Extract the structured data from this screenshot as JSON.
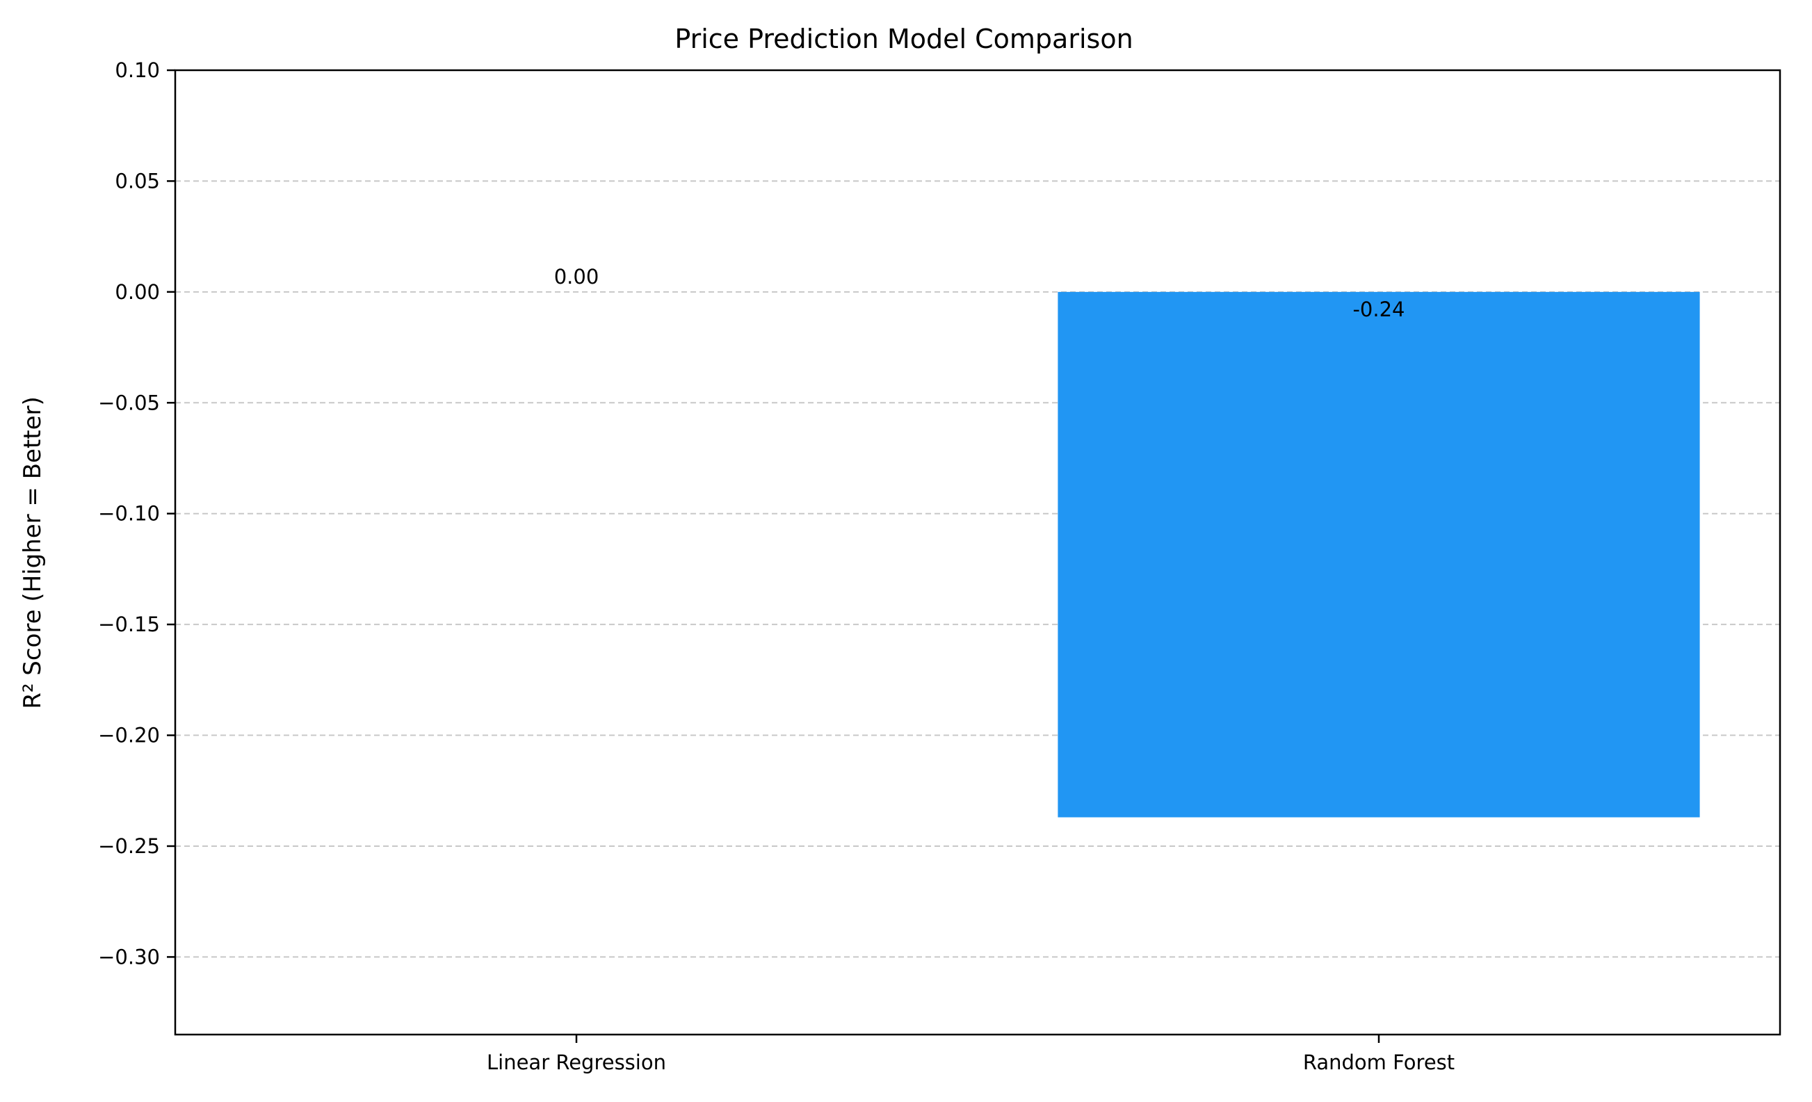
{
  "chart_data": {
    "type": "bar",
    "title": "Price Prediction Model Comparison",
    "xlabel": "",
    "ylabel": "R² Score (Higher = Better)",
    "categories": [
      "Linear Regression",
      "Random Forest"
    ],
    "values": [
      0.0,
      -0.237
    ],
    "data_labels": [
      "0.00",
      "-0.24"
    ],
    "bar_color": "#2196F3",
    "ylim": [
      -0.335,
      0.1
    ],
    "yticks": [
      0.1,
      0.05,
      0.0,
      -0.05,
      -0.1,
      -0.15,
      -0.2,
      -0.25,
      -0.3
    ],
    "ytick_labels": [
      "0.10",
      "0.05",
      "0.00",
      "−0.05",
      "−0.10",
      "−0.15",
      "−0.20",
      "−0.25",
      "−0.30"
    ],
    "grid": "horizontal-dashed",
    "legend": "none"
  }
}
